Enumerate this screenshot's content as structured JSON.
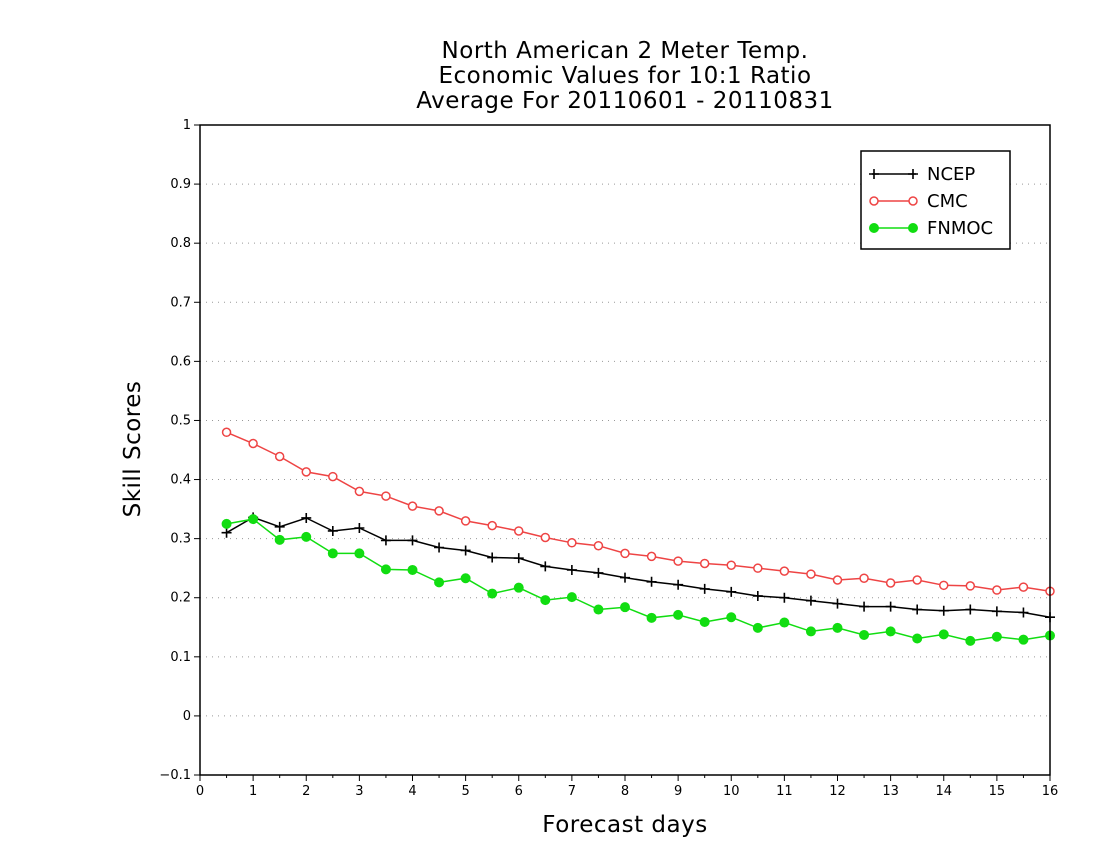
{
  "chart_data": {
    "type": "line",
    "title_lines": [
      "North American 2 Meter Temp.",
      "Economic Values for 10:1 Ratio",
      "Average For 20110601 - 20110831"
    ],
    "xlabel": "Forecast days",
    "ylabel": "Skill Scores",
    "xlim": [
      0,
      16
    ],
    "ylim": [
      -0.1,
      1
    ],
    "x_ticks": [
      "0",
      "1",
      "2",
      "3",
      "4",
      "5",
      "6",
      "7",
      "8",
      "9",
      "10",
      "11",
      "12",
      "13",
      "14",
      "15",
      "16"
    ],
    "y_ticks": [
      "−0.1",
      "0",
      "0.1",
      "0.2",
      "0.3",
      "0.4",
      "0.5",
      "0.6",
      "0.7",
      "0.8",
      "0.9",
      "1"
    ],
    "grid": true,
    "legend_position": "top-right",
    "x": [
      0.5,
      1,
      1.5,
      2,
      2.5,
      3,
      3.5,
      4,
      4.5,
      5,
      5.5,
      6,
      6.5,
      7,
      7.5,
      8,
      8.5,
      9,
      9.5,
      10,
      10.5,
      11,
      11.5,
      12,
      12.5,
      13,
      13.5,
      14,
      14.5,
      15,
      15.5,
      16
    ],
    "series": [
      {
        "name": "NCEP",
        "color": "#000000",
        "marker": "plus",
        "values": [
          0.31,
          0.336,
          0.32,
          0.335,
          0.313,
          0.318,
          0.297,
          0.297,
          0.285,
          0.28,
          0.268,
          0.267,
          0.253,
          0.247,
          0.242,
          0.234,
          0.227,
          0.222,
          0.215,
          0.21,
          0.203,
          0.2,
          0.195,
          0.19,
          0.185,
          0.185,
          0.18,
          0.178,
          0.18,
          0.177,
          0.175,
          0.167
        ]
      },
      {
        "name": "CMC",
        "color": "#ee4444",
        "marker": "open-circle",
        "values": [
          0.48,
          0.461,
          0.439,
          0.413,
          0.405,
          0.38,
          0.372,
          0.355,
          0.347,
          0.33,
          0.322,
          0.313,
          0.302,
          0.293,
          0.288,
          0.275,
          0.27,
          0.262,
          0.258,
          0.255,
          0.25,
          0.245,
          0.24,
          0.23,
          0.233,
          0.225,
          0.23,
          0.221,
          0.22,
          0.213,
          0.218,
          0.211
        ]
      },
      {
        "name": "FNMOC",
        "color": "#11dd11",
        "marker": "filled-circle",
        "values": [
          0.325,
          0.333,
          0.298,
          0.303,
          0.275,
          0.275,
          0.248,
          0.247,
          0.226,
          0.233,
          0.207,
          0.217,
          0.196,
          0.201,
          0.18,
          0.184,
          0.166,
          0.171,
          0.159,
          0.167,
          0.149,
          0.158,
          0.143,
          0.149,
          0.137,
          0.143,
          0.131,
          0.138,
          0.127,
          0.134,
          0.129,
          0.136
        ]
      }
    ]
  }
}
